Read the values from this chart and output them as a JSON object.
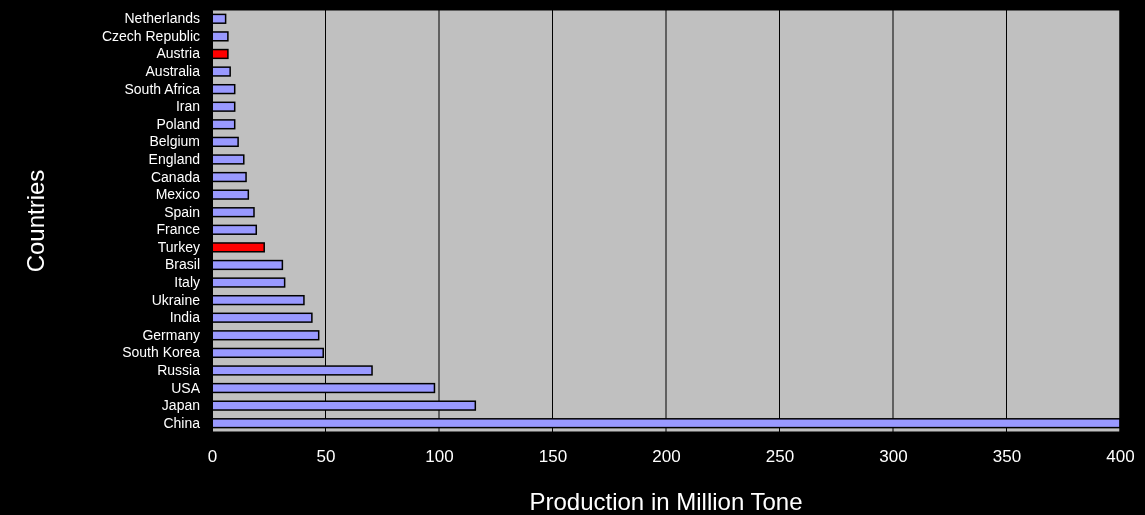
{
  "chart_data": {
    "type": "bar",
    "orientation": "horizontal",
    "xlabel": "Production in Million Tone",
    "ylabel": "Countries",
    "categories": [
      "Netherlands",
      "Czech Republic",
      "Austria",
      "Australia",
      "South Africa",
      "Iran",
      "Poland",
      "Belgium",
      "England",
      "Canada",
      "Mexico",
      "Spain",
      "France",
      "Turkey",
      "Brasil",
      "Italy",
      "Ukraine",
      "India",
      "Germany",
      "South Korea",
      "Russia",
      "USA",
      "Japan",
      "China"
    ],
    "values": [
      6,
      7,
      7,
      8,
      10,
      10,
      10,
      11.5,
      14,
      15,
      16,
      18.5,
      19.5,
      23,
      31,
      32,
      40.5,
      44,
      47,
      49,
      70.5,
      98,
      116,
      400
    ],
    "colors": [
      "#9999ff",
      "#9999ff",
      "#ff0000",
      "#9999ff",
      "#9999ff",
      "#9999ff",
      "#9999ff",
      "#9999ff",
      "#9999ff",
      "#9999ff",
      "#9999ff",
      "#9999ff",
      "#9999ff",
      "#ff0000",
      "#9999ff",
      "#9999ff",
      "#9999ff",
      "#9999ff",
      "#9999ff",
      "#9999ff",
      "#9999ff",
      "#9999ff",
      "#9999ff",
      "#9999ff"
    ],
    "xlim": [
      0,
      400
    ],
    "xticks": [
      0,
      50,
      100,
      150,
      200,
      250,
      300,
      350,
      400
    ],
    "grid": "x"
  }
}
